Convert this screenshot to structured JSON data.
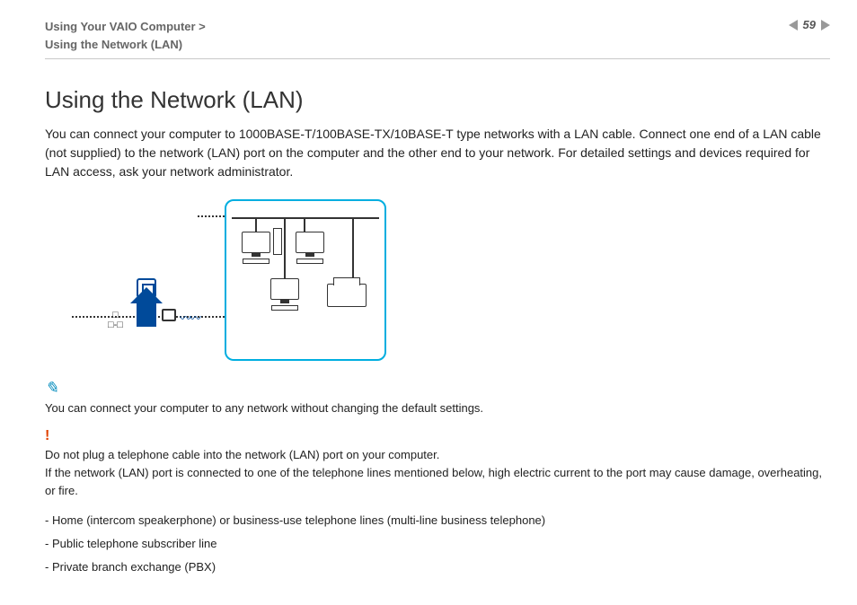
{
  "header": {
    "breadcrumb_line1": "Using Your VAIO Computer >",
    "breadcrumb_line2": "Using the Network (LAN)",
    "page_number": "59"
  },
  "title": "Using the Network (LAN)",
  "intro": "You can connect your computer to 1000BASE-T/100BASE-TX/10BASE-T type networks with a LAN cable. Connect one end of a LAN cable (not supplied) to the network (LAN) port on the computer and the other end to your network. For detailed settings and devices required for LAN access, ask your network administrator.",
  "diagram": {
    "border_color": "#00aee0",
    "accent_color": "#004a9a",
    "line_color": "#333333",
    "nodes": [
      "pc",
      "tower",
      "pc",
      "pc",
      "printer"
    ],
    "connection_style": "dotted"
  },
  "note": {
    "text": "You can connect your computer to any network without changing the default settings."
  },
  "warning": {
    "line1": "Do not plug a telephone cable into the network (LAN) port on your computer.",
    "line2": "If the network (LAN) port is connected to one of the telephone lines mentioned below, high electric current to the port may cause damage, overheating, or fire."
  },
  "list": [
    "- Home (intercom speakerphone) or business-use telephone lines (multi-line business telephone)",
    "- Public telephone subscriber line",
    "- Private branch exchange (PBX)"
  ],
  "colors": {
    "text": "#222222",
    "muted": "#666666",
    "rule": "#c8c8c8",
    "note_icon": "#008bbd",
    "warn_icon": "#e04000",
    "background": "#ffffff"
  },
  "typography": {
    "title_fontsize": 26,
    "title_weight": 300,
    "body_fontsize": 14,
    "small_fontsize": 13,
    "breadcrumb_fontsize": 13
  }
}
